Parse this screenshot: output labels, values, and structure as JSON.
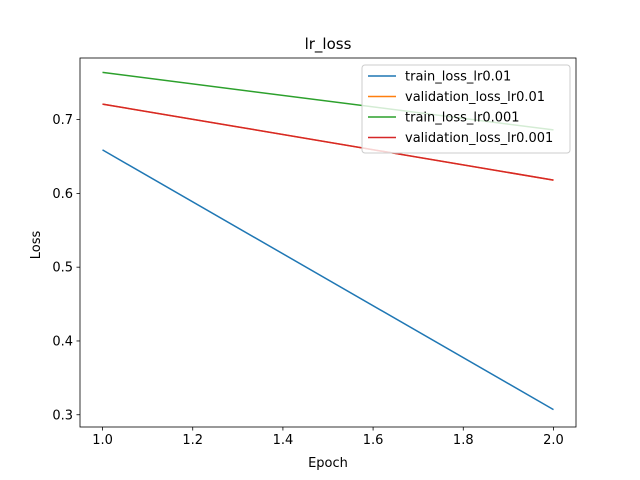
{
  "chart_data": {
    "type": "line",
    "title": "lr_loss",
    "xlabel": "Epoch",
    "ylabel": "Loss",
    "xlim": [
      0.95,
      2.05
    ],
    "ylim": [
      0.2834,
      0.7835
    ],
    "xticks": [
      "1.0",
      "1.2",
      "1.4",
      "1.6",
      "1.8",
      "2.0"
    ],
    "xtick_values": [
      1.0,
      1.2,
      1.4,
      1.6,
      1.8,
      2.0
    ],
    "yticks": [
      "0.3",
      "0.4",
      "0.5",
      "0.6",
      "0.7"
    ],
    "ytick_values": [
      0.3,
      0.4,
      0.5,
      0.6,
      0.7
    ],
    "grid": false,
    "legend_position": "top-right",
    "series": [
      {
        "name": "train_loss_lr0.01",
        "color": "#1f77b4",
        "x": [
          1.0,
          2.0
        ],
        "y": [
          0.659,
          0.307
        ]
      },
      {
        "name": "validation_loss_lr0.01",
        "color": "#ff7f0e",
        "x": [
          1.0,
          2.0
        ],
        "y": [
          0.721,
          0.618
        ]
      },
      {
        "name": "train_loss_lr0.001",
        "color": "#2ca02c",
        "x": [
          1.0,
          2.0
        ],
        "y": [
          0.764,
          0.686
        ]
      },
      {
        "name": "validation_loss_lr0.001",
        "color": "#d62728",
        "x": [
          1.0,
          2.0
        ],
        "y": [
          0.721,
          0.618
        ]
      }
    ]
  }
}
